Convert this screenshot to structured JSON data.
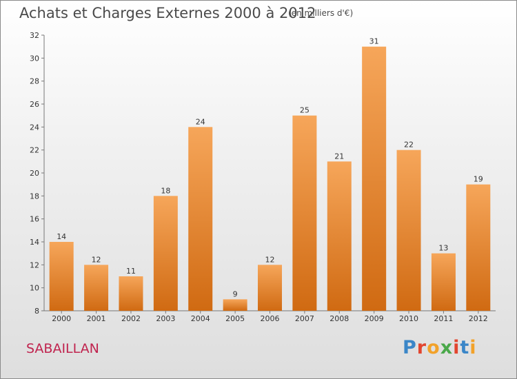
{
  "title": "Achats et Charges Externes 2000 à 2012",
  "unit": "(en milliers d'€)",
  "commune": "SABAILLAN",
  "logo": {
    "text": "Proxiti",
    "colors": [
      "#3a86c8",
      "#e2452f",
      "#f2a22a",
      "#4aa84a",
      "#e2452f",
      "#3a86c8",
      "#f2a22a"
    ]
  },
  "colors": {
    "bar_top": "#f6a65a",
    "bar_bottom": "#d06a12",
    "commune": "#c0234e"
  },
  "chart_data": {
    "type": "bar",
    "categories": [
      "2000",
      "2001",
      "2002",
      "2003",
      "2004",
      "2005",
      "2006",
      "2007",
      "2008",
      "2009",
      "2010",
      "2011",
      "2012"
    ],
    "values": [
      14,
      12,
      11,
      18,
      24,
      9,
      12,
      25,
      21,
      31,
      22,
      13,
      19
    ],
    "ylim": [
      8,
      32
    ],
    "yticks": [
      8,
      10,
      12,
      14,
      16,
      18,
      20,
      22,
      24,
      26,
      28,
      30,
      32
    ],
    "grid": false
  }
}
